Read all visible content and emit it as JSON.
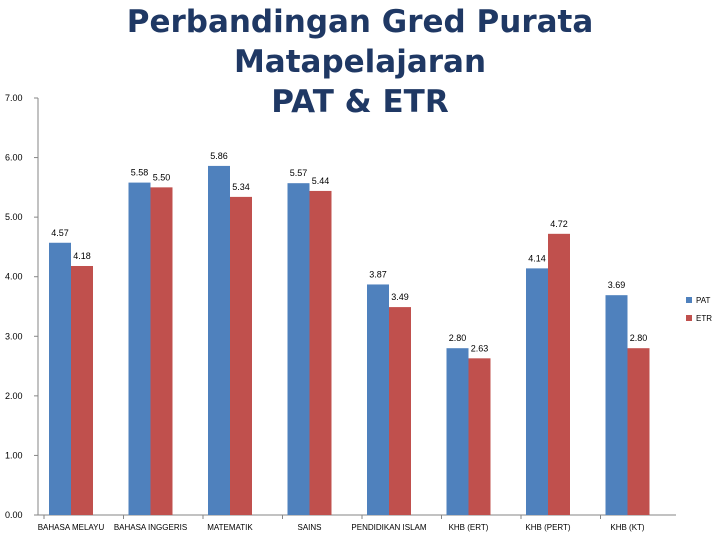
{
  "chart_data": {
    "type": "bar",
    "title_lines": [
      "Perbandingan Gred Purata Matapelajaran",
      "PAT & ETR"
    ],
    "categories": [
      "BAHASA MELAYU",
      "BAHASA INGGERIS",
      "MATEMATIK",
      "SAINS",
      "PENDIDIKAN ISLAM",
      "KHB (ERT)",
      "KHB (PERT)",
      "KHB (KT)"
    ],
    "series": [
      {
        "name": "PAT",
        "color": "#4f81bd",
        "values": [
          4.57,
          5.58,
          5.86,
          5.57,
          3.87,
          2.8,
          4.14,
          3.69
        ],
        "labels": [
          "4.57",
          "5.58",
          "5.86",
          "5.57",
          "3.87",
          "2.80",
          "4.14",
          "3.69"
        ]
      },
      {
        "name": "ETR",
        "color": "#c0504d",
        "values": [
          4.18,
          5.5,
          5.34,
          5.44,
          3.49,
          2.63,
          4.72,
          2.8
        ],
        "labels": [
          "4.18",
          "5.50",
          "5.34",
          "5.44",
          "3.49",
          "2.63",
          "4.72",
          "2.80"
        ]
      }
    ],
    "y_ticks": [
      "0.00",
      "1.00",
      "2.00",
      "3.00",
      "4.00",
      "5.00",
      "6.00",
      "7.00"
    ],
    "ylim": [
      0,
      7
    ],
    "grid": false,
    "legend_position": "right"
  }
}
